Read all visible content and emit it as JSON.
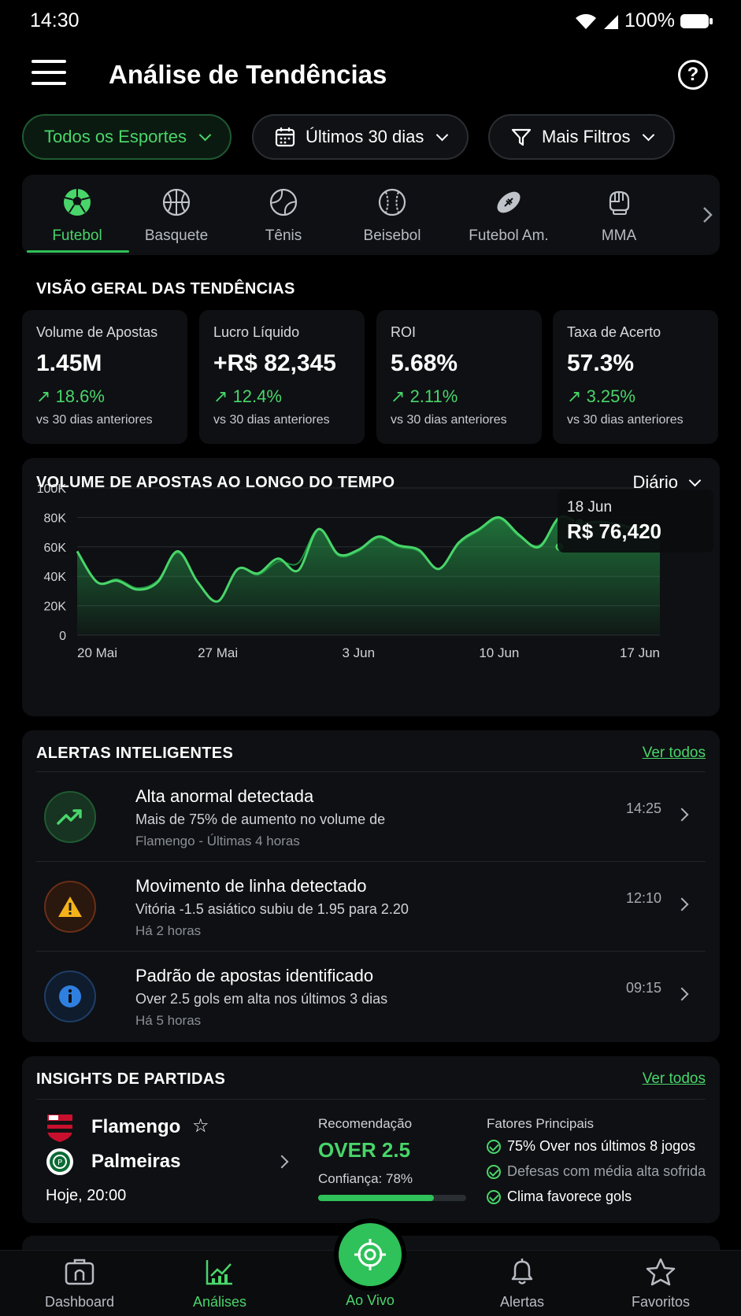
{
  "status_bar": {
    "time": "14:30",
    "battery": "100%"
  },
  "header": {
    "title": "Análise de Tendências",
    "help_label": "?"
  },
  "filters": {
    "sport": "Todos os Esportes",
    "period": "Últimos 30 dias",
    "more": "Mais Filtros"
  },
  "sport_tabs": [
    {
      "label": "Futebol",
      "active": true
    },
    {
      "label": "Basquete"
    },
    {
      "label": "Tênis"
    },
    {
      "label": "Beisebol"
    },
    {
      "label": "Futebol Am."
    },
    {
      "label": "MMA"
    }
  ],
  "overview": {
    "title": "VISÃO GERAL DAS TENDÊNCIAS",
    "kpis": [
      {
        "label": "Volume de Apostas",
        "value": "1.45M",
        "change": "18.6%",
        "sub": "vs 30 dias anteriores"
      },
      {
        "label": "Lucro Líquido",
        "value": "+R$ 82,345",
        "change": "12.4%",
        "sub": "vs 30 dias anteriores"
      },
      {
        "label": "ROI",
        "value": "5.68%",
        "change": "2.11%",
        "sub": "vs 30 dias anteriores"
      },
      {
        "label": "Taxa de Acerto",
        "value": "57.3%",
        "change": "3.25%",
        "sub": "vs 30 dias anteriores"
      }
    ]
  },
  "chart_card": {
    "title": "VOLUME DE APOSTAS AO LONGO DO TEMPO",
    "period": "Diário",
    "tooltip_date": "18 Jun",
    "tooltip_value": "R$ 76,420"
  },
  "chart_data": {
    "type": "area",
    "title": "VOLUME DE APOSTAS AO LONGO DO TEMPO",
    "x_ticks": [
      "20 Mai",
      "27 Mai",
      "3 Jun",
      "10 Jun",
      "17 Jun"
    ],
    "y_ticks": [
      "0",
      "20K",
      "40K",
      "60K",
      "80K",
      "100K"
    ],
    "ylim": [
      0,
      100000
    ],
    "x_start_day": 0,
    "x": [
      0,
      1,
      2,
      3,
      4,
      5,
      6,
      7,
      8,
      9,
      10,
      11,
      12,
      13,
      14,
      15,
      16,
      17,
      18,
      19,
      20,
      21,
      22,
      23,
      24,
      25,
      26,
      27,
      28,
      29
    ],
    "series": [
      {
        "values": [
          57000,
          36000,
          37000,
          31000,
          36000,
          57000,
          36000,
          23000,
          45000,
          42000,
          52000,
          44000,
          72000,
          55000,
          58000,
          67000,
          61000,
          58000,
          45000,
          63000,
          72000,
          80000,
          68000,
          60000,
          80000,
          76420,
          77000,
          75000,
          72000,
          73000
        ]
      }
    ],
    "series2": [
      {
        "values": [
          57000,
          36000,
          38000,
          32000,
          37000,
          56000,
          36000,
          23000,
          45000,
          41000,
          50000,
          49000,
          72000,
          54000,
          57000,
          66000,
          60000,
          57000,
          45000,
          62000,
          71000,
          79000,
          67000,
          61000,
          79000,
          76420,
          77000,
          75000,
          72000,
          73000
        ]
      }
    ],
    "highlight": {
      "x_label": "18 Jun",
      "value": 76420
    },
    "grid": true
  },
  "alerts": {
    "title": "ALERTAS INTELIGENTES",
    "see_all": "Ver todos",
    "items": [
      {
        "title": "Alta anormal detectada",
        "desc": "Mais de 75% de aumento no volume de",
        "meta": "Flamengo - Últimas 4 horas",
        "time": "14:25",
        "icon": "trend-up-icon"
      },
      {
        "title": "Movimento de linha detectado",
        "desc": "Vitória -1.5 asiático subiu de 1.95 para 2.20",
        "meta": "Há 2 horas",
        "time": "12:10",
        "icon": "warning-icon"
      },
      {
        "title": "Padrão de apostas identificado",
        "desc": "Over 2.5 gols em alta nos últimos 3 dias",
        "meta": "Há 5 horas",
        "time": "09:15",
        "icon": "info-icon"
      }
    ]
  },
  "insights": {
    "title": "INSIGHTS DE PARTIDAS",
    "see_all": "Ver todos",
    "match": {
      "home": "Flamengo",
      "away": "Palmeiras",
      "time": "Hoje, 20:00",
      "rec_label": "Recomendação",
      "rec_value": "OVER 2.5",
      "confidence": "Confiança: 78%",
      "confidence_pct": 78,
      "factors_label": "Fatores Principais",
      "factors": [
        "75% Over nos últimos 8 jogos",
        "Defesas com média alta sofrida",
        "Clima favorece gols"
      ]
    }
  },
  "nav": {
    "items": [
      "Dashboard",
      "Análises",
      "Ao Vivo",
      "Alertas",
      "Favoritos"
    ],
    "active": "Análises"
  },
  "colors": {
    "accent": "#49d56a",
    "background": "#000000",
    "card": "#0e1013"
  }
}
